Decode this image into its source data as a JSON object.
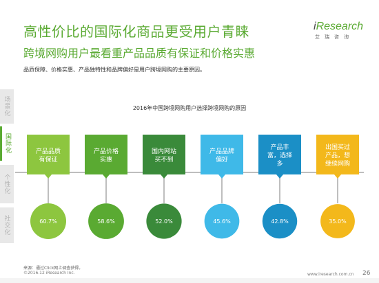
{
  "header": {
    "title_line1": "高性价比的国际化商品更受用户青睐",
    "title_line2": "跨境网购用户最看重产品品质有保证和价格实惠",
    "subtitle": "品质保障、价格实惠、产品独特性和品牌偏好是用户跨境网购的主要原因。"
  },
  "logo": {
    "i_text": "i",
    "rest_text": "Research",
    "cn_text": "艾瑞咨询"
  },
  "sidebar": {
    "tabs": [
      {
        "label": "场景化",
        "active": false
      },
      {
        "label": "国际化",
        "active": true
      },
      {
        "label": "个性化",
        "active": false
      },
      {
        "label": "社交化",
        "active": false
      }
    ]
  },
  "chart_data": {
    "type": "bar",
    "title": "2016年中国跨境网购用户选择跨境网购的原因",
    "categories": [
      "产品品质有保证",
      "产品价格实惠",
      "国内网站买不到",
      "产品品牌偏好",
      "产品丰富，选择多",
      "出国买过产品，想继续网购"
    ],
    "category_labels": [
      [
        "产品品质",
        "有保证"
      ],
      [
        "产品价格",
        "实惠"
      ],
      [
        "国内网站",
        "买不到"
      ],
      [
        "产品品牌",
        "偏好"
      ],
      [
        "产品丰",
        "富，选择",
        "多"
      ],
      [
        "出国买过",
        "产品，想",
        "继续网购"
      ]
    ],
    "series": [
      {
        "values": [
          60.7,
          58.6,
          52.0,
          45.6,
          42.8,
          35.0
        ]
      }
    ],
    "value_labels": [
      "60.7%",
      "58.6%",
      "52.0%",
      "45.6%",
      "42.8%",
      "35.0%"
    ],
    "colors": [
      "#8dc63f",
      "#5aaa32",
      "#3a8a3a",
      "#3fb9e8",
      "#1b8fc6",
      "#f3b81b"
    ],
    "connector_color": "#a8a8a8"
  },
  "footer": {
    "source": "来源：通过Click网上调查获得。",
    "copyright": "©2016.12 iResearch Inc.",
    "url": "www.iresearch.com.cn",
    "page": "26"
  }
}
